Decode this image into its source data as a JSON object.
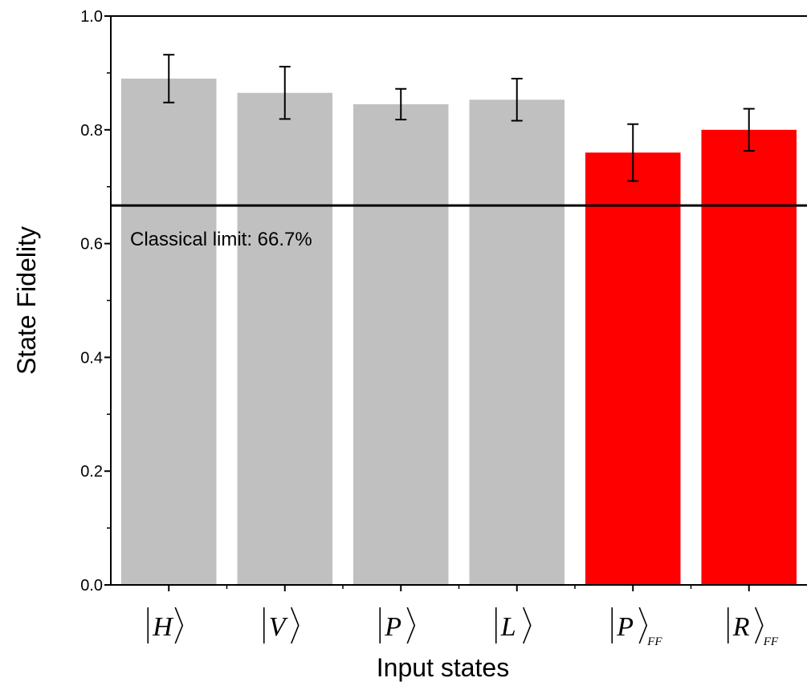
{
  "chart_data": {
    "type": "bar",
    "title": "",
    "xlabel": "Input states",
    "ylabel": "State Fidelity",
    "ylim": [
      0.0,
      1.0
    ],
    "yticks": [
      "0.0",
      "0.2",
      "0.4",
      "0.6",
      "0.8",
      "1.0"
    ],
    "categories": [
      "|H⟩",
      "|V⟩",
      "|P⟩",
      "|L⟩",
      "|P⟩FF",
      "|R⟩FF"
    ],
    "category_parts": [
      {
        "letter": "H",
        "sub": ""
      },
      {
        "letter": "V",
        "sub": ""
      },
      {
        "letter": "P",
        "sub": ""
      },
      {
        "letter": "L",
        "sub": ""
      },
      {
        "letter": "P",
        "sub": "FF"
      },
      {
        "letter": "R",
        "sub": "FF"
      }
    ],
    "values": [
      0.89,
      0.865,
      0.845,
      0.853,
      0.76,
      0.8
    ],
    "errors": [
      0.042,
      0.046,
      0.027,
      0.037,
      0.05,
      0.037
    ],
    "bar_colors": [
      "#c0c0c0",
      "#c0c0c0",
      "#c0c0c0",
      "#c0c0c0",
      "#ff0000",
      "#ff0000"
    ],
    "reference_line": {
      "value": 0.667,
      "label": "Classical limit: 66.7%"
    },
    "grid": false,
    "legend": "none"
  }
}
